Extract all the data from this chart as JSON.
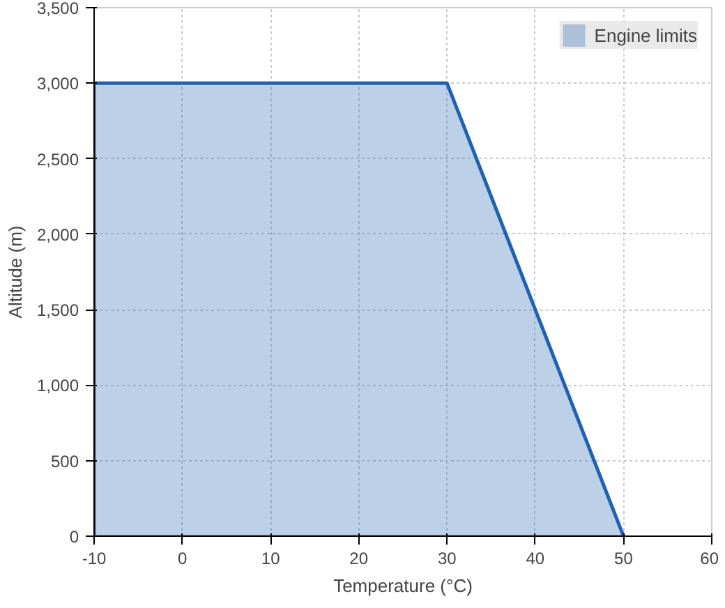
{
  "chart_data": {
    "type": "area",
    "xlabel": "Temperature (°C)",
    "ylabel": "Altitude (m)",
    "x": [
      -10,
      -10,
      30,
      50
    ],
    "series": [
      {
        "name": "Engine limits",
        "color": "#2162b0",
        "values": [
          0,
          3000,
          3000,
          0
        ]
      }
    ],
    "xlim": [
      -10,
      60
    ],
    "xticks": [
      -10,
      0,
      10,
      20,
      30,
      40,
      50,
      60
    ],
    "ylim": [
      0,
      3500
    ],
    "yticks": [
      0,
      500,
      {
        "value": 1000,
        "label": "1,000"
      },
      {
        "value": 1500,
        "label": "1,500"
      },
      {
        "value": 2000,
        "label": "2,000"
      },
      {
        "value": 2500,
        "label": "2,500"
      },
      {
        "value": 3000,
        "label": "3,000"
      },
      {
        "value": 3500,
        "label": "3,500"
      }
    ],
    "grid": true,
    "legend": "top right"
  }
}
